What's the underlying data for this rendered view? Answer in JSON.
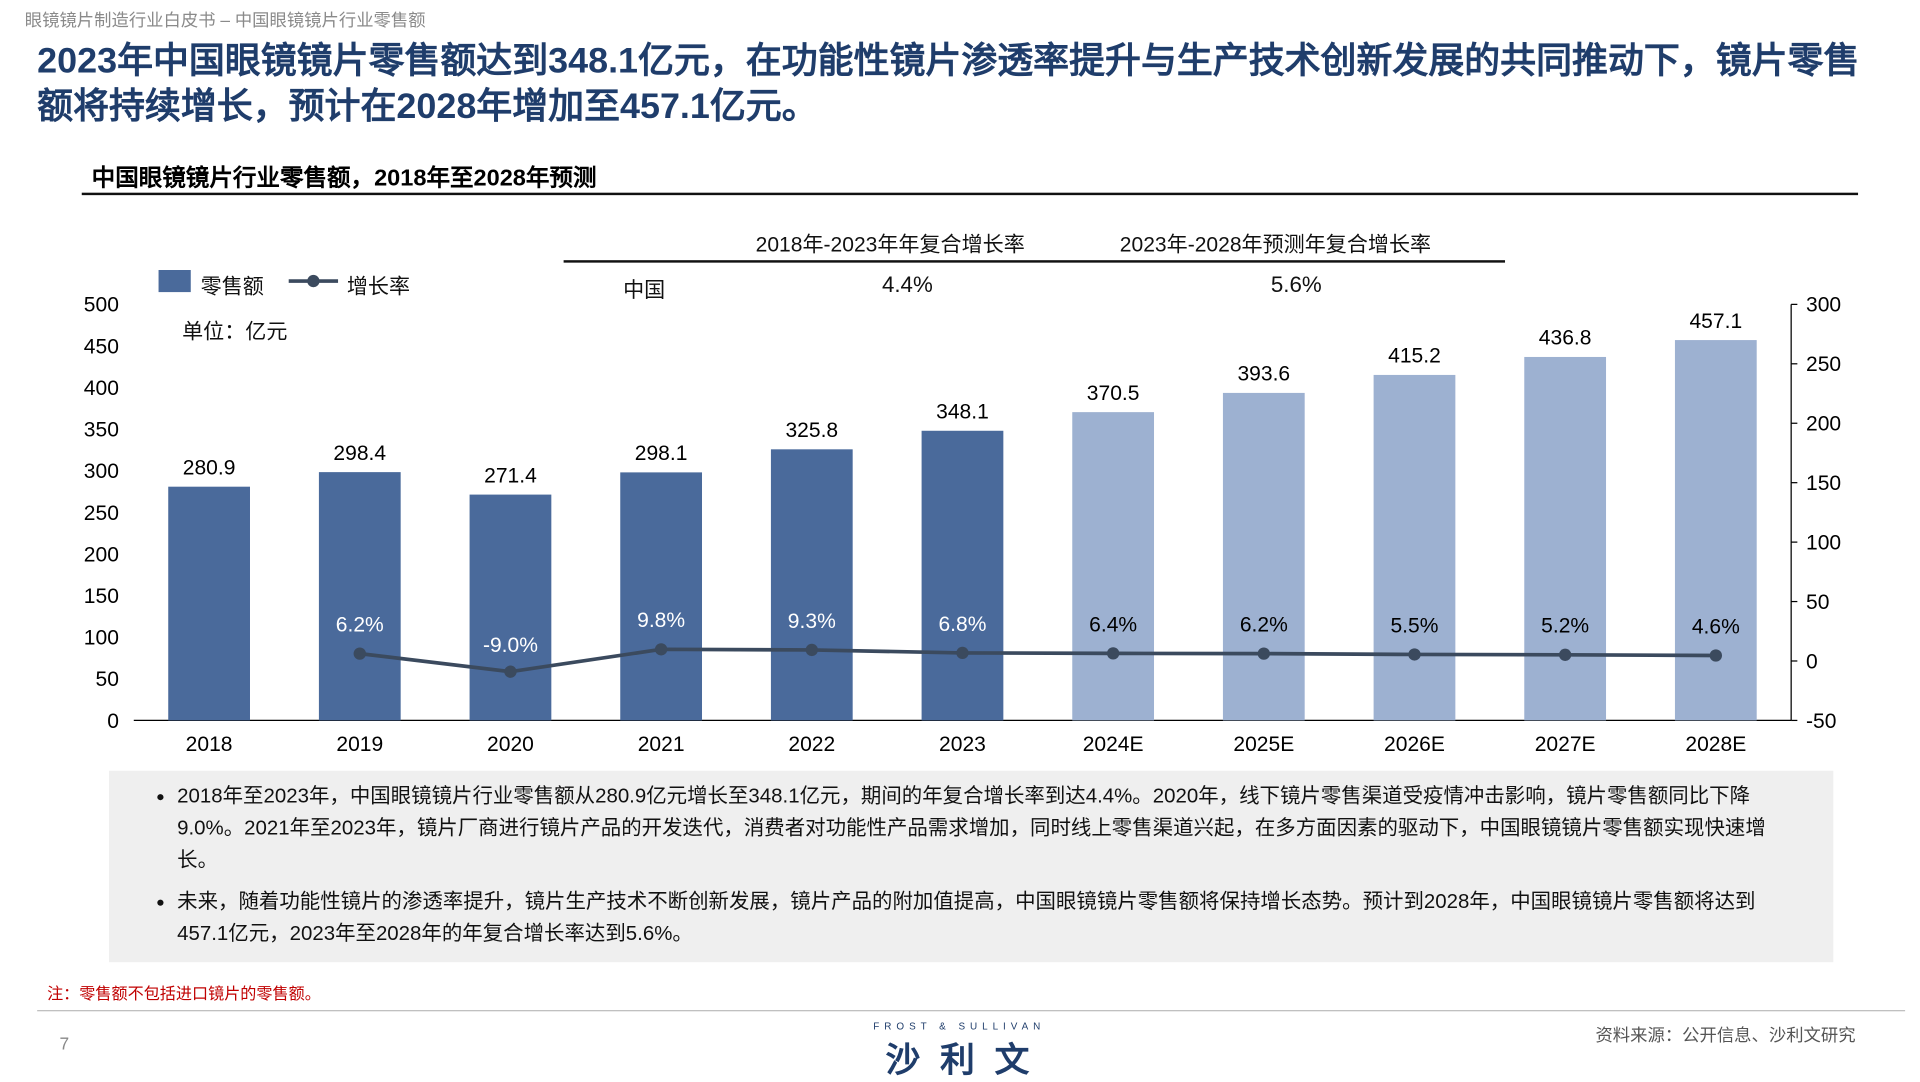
{
  "breadcrumb": "眼镜镜片制造行业白皮书 – 中国眼镜镜片行业零售额",
  "headline": "2023年中国眼镜镜片零售额达到348.1亿元，在功能性镜片渗透率提升与生产技术创新发展的共同推动下，镜片零售额将持续增长，预计在2028年增加至457.1亿元。",
  "cagr_table": {
    "col1": "2018年-2023年年复合增长率",
    "col2": "2023年-2028年预测年复合增长率",
    "row_label": "中国",
    "v1": "4.4%",
    "v2": "5.6%"
  },
  "unit": "单位：亿元",
  "chart_data": {
    "type": "bar",
    "title": "中国眼镜镜片行业零售额，2018年至2028年预测",
    "categories": [
      "2018",
      "2019",
      "2020",
      "2021",
      "2022",
      "2023",
      "2024E",
      "2025E",
      "2026E",
      "2027E",
      "2028E"
    ],
    "series": [
      {
        "name": "零售额",
        "type": "bar",
        "axis": "left",
        "values": [
          280.9,
          298.4,
          271.4,
          298.1,
          325.8,
          348.1,
          370.5,
          393.6,
          415.2,
          436.8,
          457.1
        ],
        "labels": [
          "280.9",
          "298.4",
          "271.4",
          "298.1",
          "325.8",
          "348.1",
          "370.5",
          "393.6",
          "415.2",
          "436.8",
          "457.1"
        ]
      },
      {
        "name": "增长率",
        "type": "line",
        "axis": "right",
        "values": [
          null,
          6.2,
          -9.0,
          9.8,
          9.3,
          6.8,
          6.4,
          6.2,
          5.5,
          5.2,
          4.6
        ],
        "labels": [
          "",
          "6.2%",
          "-9.0%",
          "9.8%",
          "9.3%",
          "6.8%",
          "6.4%",
          "6.2%",
          "5.5%",
          "5.2%",
          "4.6%"
        ]
      }
    ],
    "ylim_left": [
      0,
      500
    ],
    "yticks_left": [
      0,
      50,
      100,
      150,
      200,
      250,
      300,
      350,
      400,
      450,
      500
    ],
    "ylim_right": [
      -50,
      300
    ],
    "yticks_right": [
      -50,
      0,
      50,
      100,
      150,
      200,
      250,
      300
    ],
    "legend": "top-left",
    "colors": {
      "actual": "#4a6a9b",
      "forecast": "#9db1d1",
      "line": "#3b4a5e"
    }
  },
  "bullets": [
    "2018年至2023年，中国眼镜镜片行业零售额从280.9亿元增长至348.1亿元，期间的年复合增长率到达4.4%。2020年，线下镜片零售渠道受疫情冲击影响，镜片零售额同比下降9.0%。2021年至2023年，镜片厂商进行镜片产品的开发迭代，消费者对功能性产品需求增加，同时线上零售渠道兴起，在多方面因素的驱动下，中国眼镜镜片零售额实现快速增长。",
    "未来，随着功能性镜片的渗透率提升，镜片生产技术不断创新发展，镜片产品的附加值提高，中国眼镜镜片零售额将保持增长态势。预计到2028年，中国眼镜镜片零售额将达到457.1亿元，2023年至2028年的年复合增长率达到5.6%。"
  ],
  "note": "注：零售额不包括进口镜片的零售额。",
  "page_number": "7",
  "source": "资料来源：公开信息、沙利文研究",
  "logo": {
    "en": "FROST & SULLIVAN",
    "cn": "沙利文"
  }
}
